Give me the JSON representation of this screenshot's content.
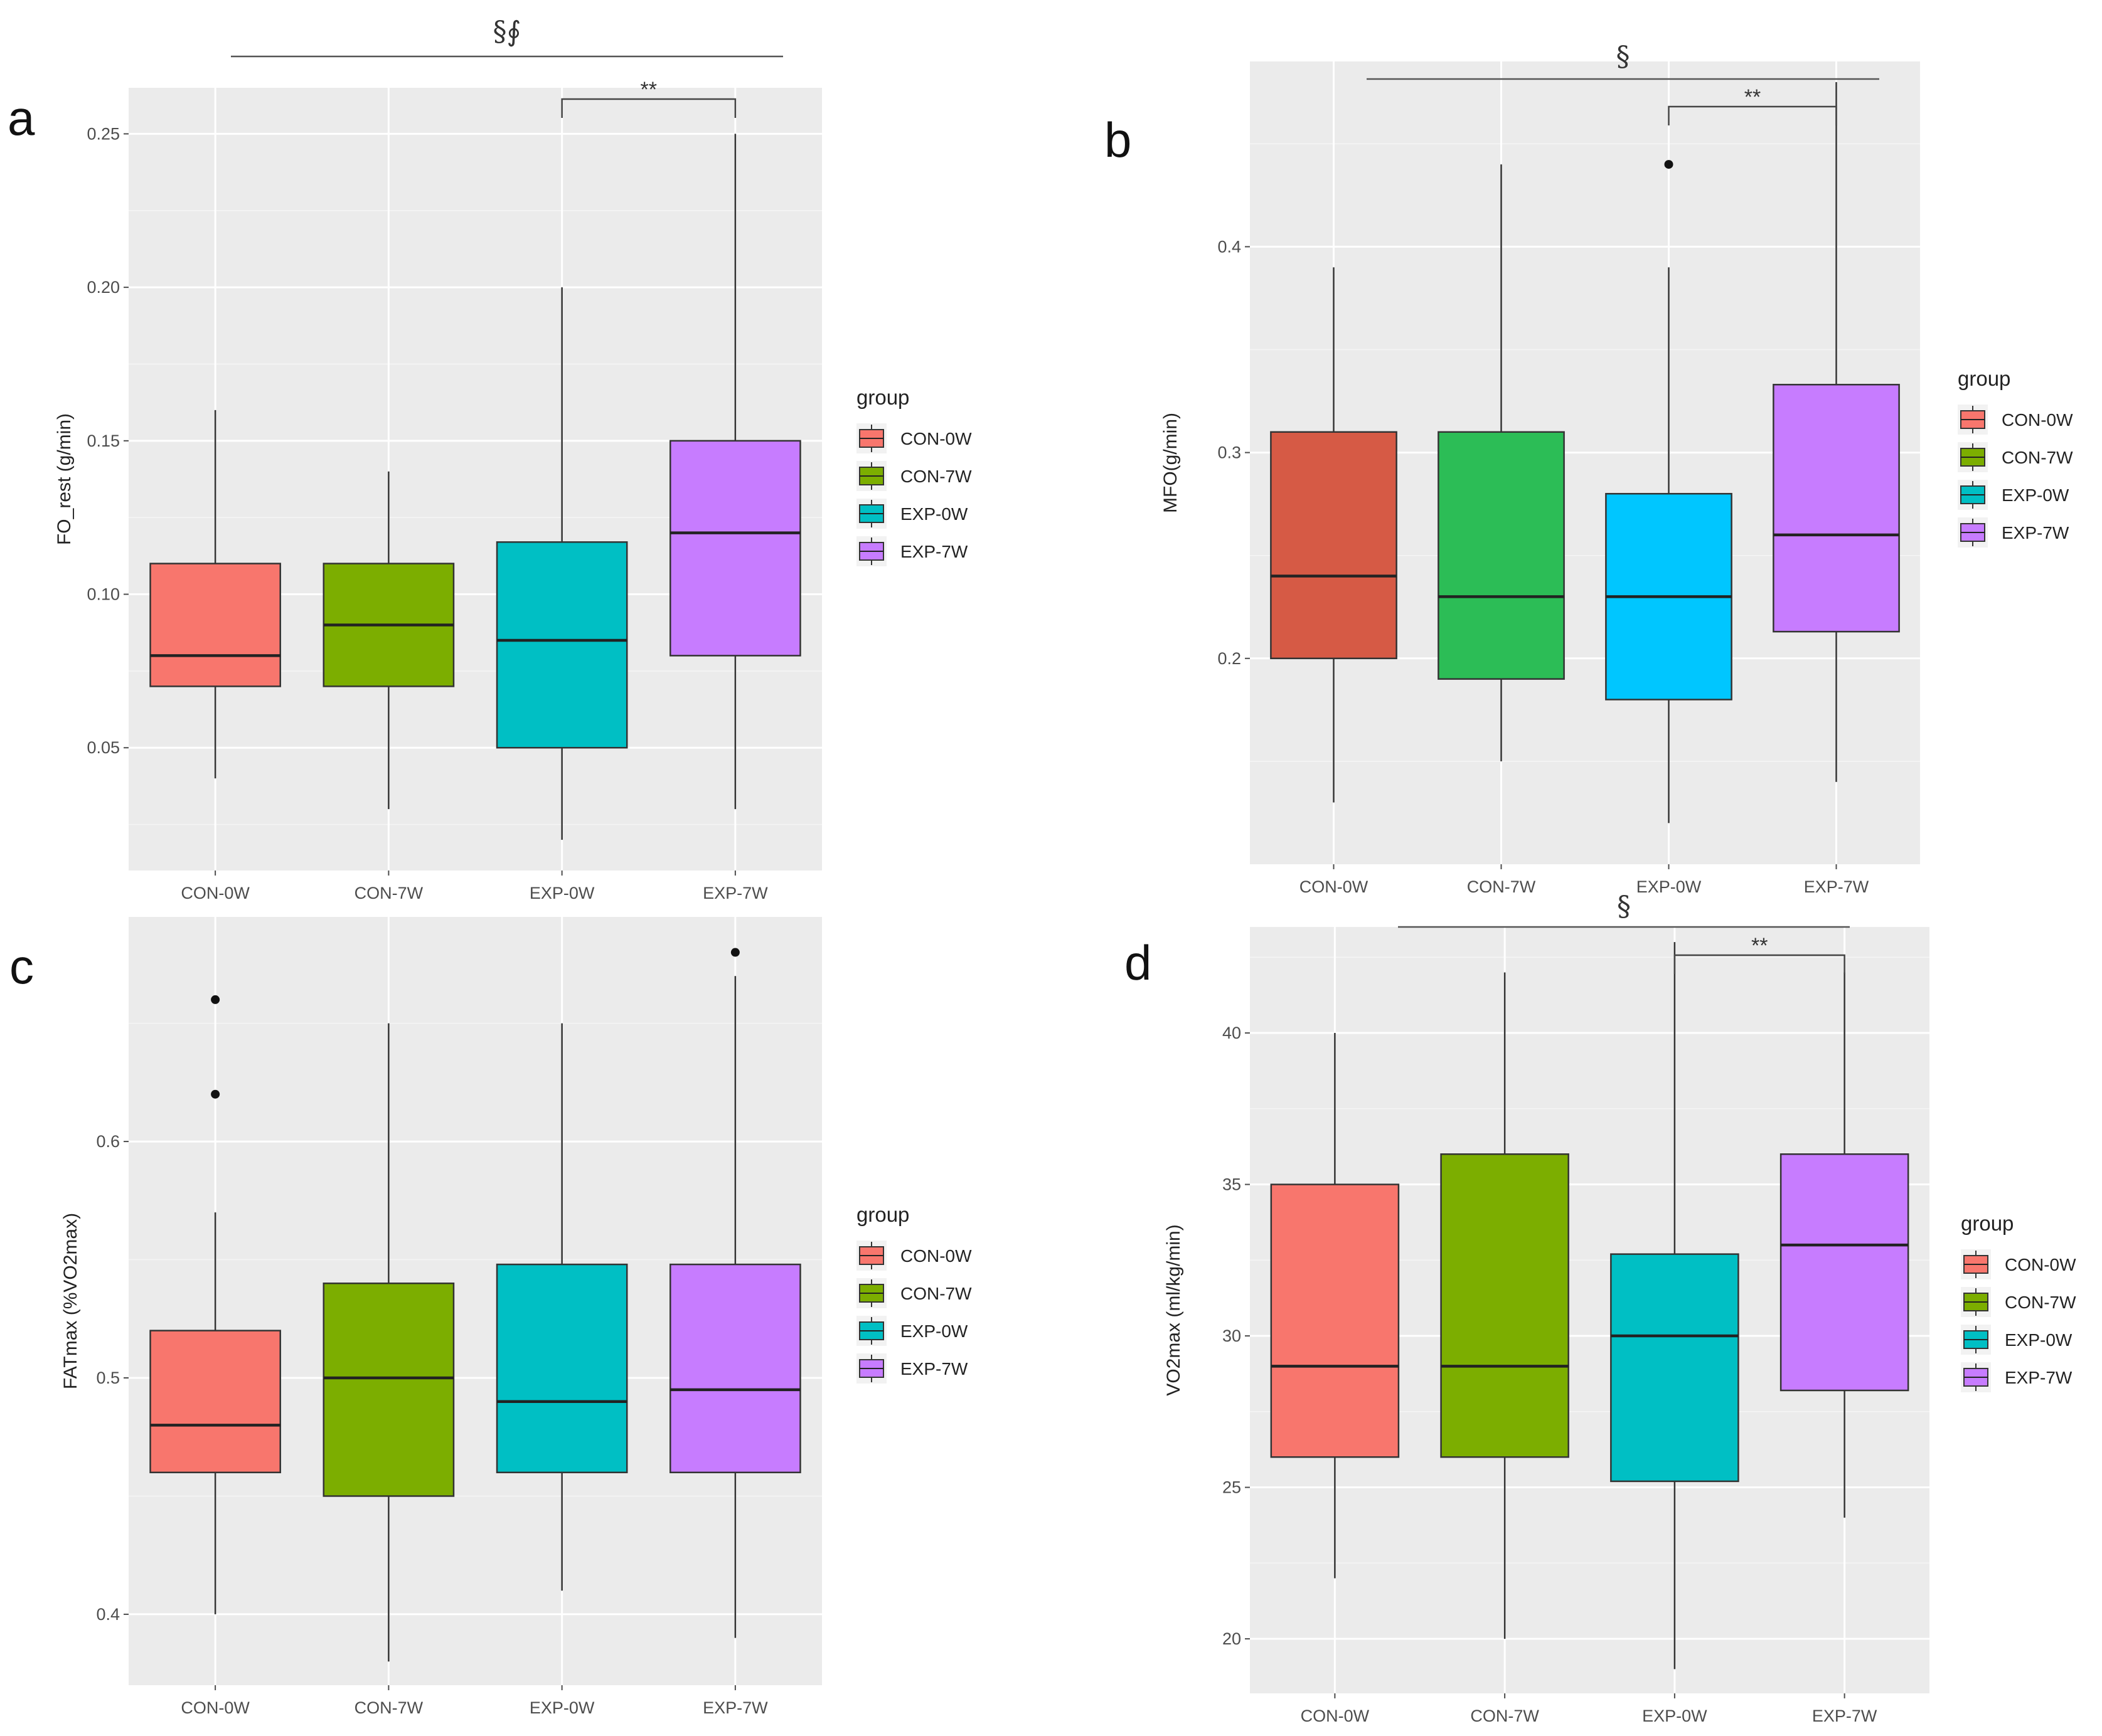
{
  "legend_title": "group",
  "chart_data": [
    {
      "panel": "a",
      "type": "box",
      "categories": [
        "CON-0W",
        "CON-7W",
        "EXP-0W",
        "EXP-7W"
      ],
      "ylabel": "FO_rest (g/min)",
      "ylim": [
        0.01,
        0.265
      ],
      "yticks": [
        0.05,
        0.1,
        0.15,
        0.2,
        0.25
      ],
      "ytick_labels": [
        "0.05",
        "0.10",
        "0.15",
        "0.20",
        "0.25"
      ],
      "colors": [
        "#f8766d",
        "#7cae00",
        "#00bfc4",
        "#c77cff"
      ],
      "boxes": [
        {
          "min": 0.04,
          "q1": 0.07,
          "median": 0.08,
          "q3": 0.11,
          "max": 0.16,
          "outliers": []
        },
        {
          "min": 0.03,
          "q1": 0.07,
          "median": 0.09,
          "q3": 0.11,
          "max": 0.14,
          "outliers": []
        },
        {
          "min": 0.02,
          "q1": 0.05,
          "median": 0.085,
          "q3": 0.117,
          "max": 0.2,
          "outliers": []
        },
        {
          "min": 0.03,
          "q1": 0.08,
          "median": 0.12,
          "q3": 0.15,
          "max": 0.25,
          "outliers": []
        }
      ],
      "group_sig_label": "§∮",
      "pair_sig": {
        "from": 2,
        "to": 3,
        "label": "**"
      }
    },
    {
      "panel": "b",
      "type": "box",
      "categories": [
        "CON-0W",
        "CON-7W",
        "EXP-0W",
        "EXP-7W"
      ],
      "ylabel": "MFO(g/min)",
      "ylim": [
        0.1,
        0.49
      ],
      "yticks": [
        0.2,
        0.3,
        0.4
      ],
      "ytick_labels": [
        "0.2",
        "0.3",
        "0.4"
      ],
      "colors": [
        "#d65a45",
        "#2cbd56",
        "#00c6ff",
        "#c77cff"
      ],
      "legend_colors": [
        "#f8766d",
        "#7cae00",
        "#00bfc4",
        "#c77cff"
      ],
      "boxes": [
        {
          "min": 0.13,
          "q1": 0.2,
          "median": 0.24,
          "q3": 0.31,
          "max": 0.39,
          "outliers": []
        },
        {
          "min": 0.15,
          "q1": 0.19,
          "median": 0.23,
          "q3": 0.31,
          "max": 0.44,
          "outliers": []
        },
        {
          "min": 0.12,
          "q1": 0.18,
          "median": 0.23,
          "q3": 0.28,
          "max": 0.39,
          "outliers": [
            0.44
          ]
        },
        {
          "min": 0.14,
          "q1": 0.213,
          "median": 0.26,
          "q3": 0.333,
          "max": 0.48,
          "outliers": []
        }
      ],
      "group_sig_label": "§",
      "pair_sig": {
        "from": 2,
        "to": 3,
        "label": "**"
      }
    },
    {
      "panel": "c",
      "type": "box",
      "categories": [
        "CON-0W",
        "CON-7W",
        "EXP-0W",
        "EXP-7W"
      ],
      "ylabel": "FATmax (%VO2max)",
      "ylim": [
        0.37,
        0.695
      ],
      "yticks": [
        0.4,
        0.5,
        0.6
      ],
      "ytick_labels": [
        "0.4",
        "0.5",
        "0.6"
      ],
      "colors": [
        "#f8766d",
        "#7cae00",
        "#00bfc4",
        "#c77cff"
      ],
      "boxes": [
        {
          "min": 0.4,
          "q1": 0.46,
          "median": 0.48,
          "q3": 0.52,
          "max": 0.57,
          "outliers": [
            0.62,
            0.66
          ]
        },
        {
          "min": 0.38,
          "q1": 0.45,
          "median": 0.5,
          "q3": 0.54,
          "max": 0.65,
          "outliers": []
        },
        {
          "min": 0.41,
          "q1": 0.46,
          "median": 0.49,
          "q3": 0.548,
          "max": 0.65,
          "outliers": []
        },
        {
          "min": 0.39,
          "q1": 0.46,
          "median": 0.495,
          "q3": 0.548,
          "max": 0.67,
          "outliers": [
            0.68
          ]
        }
      ],
      "group_sig_label": "",
      "pair_sig": null
    },
    {
      "panel": "d",
      "type": "box",
      "categories": [
        "CON-0W",
        "CON-7W",
        "EXP-0W",
        "EXP-7W"
      ],
      "ylabel": "VO2max (ml/kg/min)",
      "ylim": [
        18.2,
        43.5
      ],
      "yticks": [
        20,
        25,
        30,
        35,
        40
      ],
      "ytick_labels": [
        "20",
        "25",
        "30",
        "35",
        "40"
      ],
      "colors": [
        "#f8766d",
        "#7cae00",
        "#00bfc4",
        "#c77cff"
      ],
      "boxes": [
        {
          "min": 22,
          "q1": 26,
          "median": 29,
          "q3": 35,
          "max": 40,
          "outliers": []
        },
        {
          "min": 20,
          "q1": 26,
          "median": 29,
          "q3": 36,
          "max": 42,
          "outliers": []
        },
        {
          "min": 19,
          "q1": 25.2,
          "median": 30,
          "q3": 32.7,
          "max": 43,
          "outliers": []
        },
        {
          "min": 24,
          "q1": 28.2,
          "median": 33,
          "q3": 36,
          "max": 42,
          "outliers": []
        }
      ],
      "group_sig_label": "§",
      "pair_sig": {
        "from": 2,
        "to": 3,
        "label": "**"
      }
    }
  ]
}
